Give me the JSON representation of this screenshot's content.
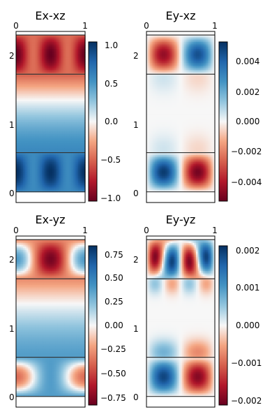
{
  "chart_data": [
    {
      "type": "heatmap",
      "title": "Ex-xz",
      "x_ticks": [
        "0",
        "1"
      ],
      "y_ticks": [
        "0",
        "1",
        "2"
      ],
      "xlim": [
        0,
        1
      ],
      "ylim": [
        -0.15,
        2.25
      ],
      "colorbar": {
        "min": -1.05,
        "max": 1.05,
        "ticks": [
          "1.0",
          "0.5",
          "0.0",
          "−0.5",
          "−1.0"
        ],
        "tick_values": [
          1.0,
          0.5,
          0.0,
          -0.5,
          -1.0
        ]
      },
      "layer_boundaries_y": [
        0.0,
        0.55,
        1.65,
        2.2
      ],
      "colormap": "RdBu"
    },
    {
      "type": "heatmap",
      "title": "Ey-xz",
      "x_ticks": [
        "0",
        "1"
      ],
      "y_ticks": [
        "0",
        "1",
        "2"
      ],
      "xlim": [
        0,
        1
      ],
      "ylim": [
        -0.15,
        2.25
      ],
      "colorbar": {
        "min": -0.0052,
        "max": 0.0052,
        "ticks": [
          "0.004",
          "0.002",
          "0.000",
          "−0.002",
          "−0.004"
        ],
        "tick_values": [
          0.004,
          0.002,
          0.0,
          -0.002,
          -0.004
        ]
      },
      "layer_boundaries_y": [
        0.0,
        0.55,
        1.65,
        2.2
      ],
      "colormap": "RdBu"
    },
    {
      "type": "heatmap",
      "title": "Ex-yz",
      "x_ticks": [
        "0",
        "1"
      ],
      "y_ticks": [
        "0",
        "1",
        "2"
      ],
      "xlim": [
        0,
        1
      ],
      "ylim": [
        -0.15,
        2.25
      ],
      "colorbar": {
        "min": -0.85,
        "max": 0.85,
        "ticks": [
          "0.75",
          "0.50",
          "0.25",
          "0.00",
          "−0.25",
          "−0.50",
          "−0.75"
        ],
        "tick_values": [
          0.75,
          0.5,
          0.25,
          0.0,
          -0.25,
          -0.5,
          -0.75
        ]
      },
      "layer_boundaries_y": [
        0.0,
        0.55,
        1.65,
        2.2
      ],
      "colormap": "RdBu"
    },
    {
      "type": "heatmap",
      "title": "Ey-yz",
      "x_ticks": [
        "0",
        "1"
      ],
      "y_ticks": [
        "0",
        "1",
        "2"
      ],
      "xlim": [
        0,
        1
      ],
      "ylim": [
        -0.15,
        2.25
      ],
      "colorbar": {
        "min": -0.0021,
        "max": 0.0021,
        "ticks": [
          "0.002",
          "0.001",
          "0.000",
          "−0.001",
          "−0.002"
        ],
        "tick_values": [
          0.002,
          0.001,
          0.0,
          -0.001,
          -0.002
        ]
      },
      "layer_boundaries_y": [
        0.0,
        0.55,
        1.65,
        2.2
      ],
      "colormap": "RdBu"
    }
  ]
}
